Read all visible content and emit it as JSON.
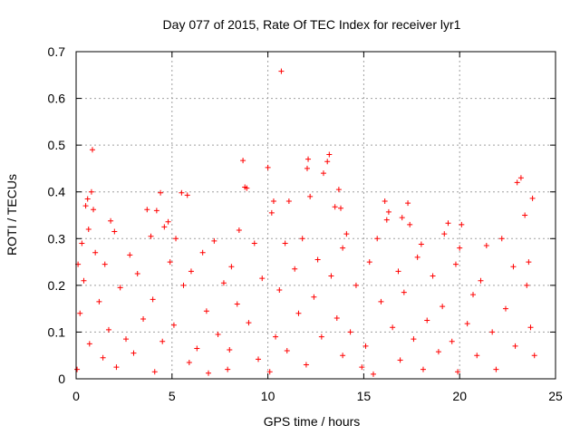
{
  "chart_data": {
    "type": "scatter",
    "title": "Day 077 of 2015, Rate Of TEC Index for receiver lyr1",
    "xlabel": "GPS time / hours",
    "ylabel": "ROTI / TECUs",
    "xlim": [
      0,
      25
    ],
    "ylim": [
      0,
      0.7
    ],
    "xticks": [
      "0",
      "5",
      "10",
      "15",
      "20",
      "25"
    ],
    "yticks": [
      "0",
      "0.1",
      "0.2",
      "0.3",
      "0.4",
      "0.5",
      "0.6",
      "0.7"
    ],
    "grid": true,
    "marker": "+",
    "series": [
      {
        "name": "ROTI",
        "color": "#ff0000",
        "points": [
          [
            10.7,
            0.658
          ],
          [
            0.85,
            0.49
          ],
          [
            8.7,
            0.467
          ],
          [
            12.1,
            0.47
          ],
          [
            13.2,
            0.48
          ],
          [
            13.1,
            0.465
          ],
          [
            10.0,
            0.452
          ],
          [
            12.05,
            0.45
          ],
          [
            12.9,
            0.44
          ],
          [
            23.2,
            0.43
          ],
          [
            23.0,
            0.42
          ],
          [
            8.8,
            0.41
          ],
          [
            8.9,
            0.408
          ],
          [
            13.7,
            0.405
          ],
          [
            0.8,
            0.4
          ],
          [
            4.4,
            0.398
          ],
          [
            5.5,
            0.398
          ],
          [
            5.8,
            0.393
          ],
          [
            12.2,
            0.39
          ],
          [
            23.8,
            0.386
          ],
          [
            0.6,
            0.385
          ],
          [
            10.3,
            0.38
          ],
          [
            11.1,
            0.38
          ],
          [
            16.1,
            0.38
          ],
          [
            17.3,
            0.376
          ],
          [
            0.5,
            0.37
          ],
          [
            13.5,
            0.368
          ],
          [
            13.8,
            0.365
          ],
          [
            3.7,
            0.362
          ],
          [
            0.9,
            0.362
          ],
          [
            4.2,
            0.36
          ],
          [
            16.3,
            0.357
          ],
          [
            10.2,
            0.355
          ],
          [
            23.4,
            0.35
          ],
          [
            17.0,
            0.345
          ],
          [
            16.2,
            0.34
          ],
          [
            1.8,
            0.338
          ],
          [
            4.8,
            0.336
          ],
          [
            19.4,
            0.333
          ],
          [
            20.1,
            0.33
          ],
          [
            17.4,
            0.33
          ],
          [
            0.65,
            0.32
          ],
          [
            4.6,
            0.325
          ],
          [
            8.5,
            0.318
          ],
          [
            2.0,
            0.315
          ],
          [
            14.1,
            0.31
          ],
          [
            19.2,
            0.31
          ],
          [
            22.2,
            0.3
          ],
          [
            3.9,
            0.305
          ],
          [
            11.8,
            0.3
          ],
          [
            5.2,
            0.3
          ],
          [
            15.7,
            0.3
          ],
          [
            7.2,
            0.295
          ],
          [
            0.3,
            0.29
          ],
          [
            9.3,
            0.29
          ],
          [
            10.9,
            0.29
          ],
          [
            18.0,
            0.288
          ],
          [
            21.4,
            0.285
          ],
          [
            13.9,
            0.28
          ],
          [
            20.0,
            0.28
          ],
          [
            0.1,
            0.245
          ],
          [
            6.6,
            0.27
          ],
          [
            1.0,
            0.27
          ],
          [
            2.8,
            0.265
          ],
          [
            17.8,
            0.26
          ],
          [
            12.6,
            0.255
          ],
          [
            23.6,
            0.25
          ],
          [
            4.9,
            0.25
          ],
          [
            15.3,
            0.25
          ],
          [
            8.1,
            0.24
          ],
          [
            1.5,
            0.245
          ],
          [
            19.8,
            0.245
          ],
          [
            22.8,
            0.24
          ],
          [
            11.4,
            0.235
          ],
          [
            6.0,
            0.23
          ],
          [
            16.8,
            0.23
          ],
          [
            3.2,
            0.225
          ],
          [
            13.3,
            0.22
          ],
          [
            18.6,
            0.22
          ],
          [
            9.7,
            0.215
          ],
          [
            21.1,
            0.21
          ],
          [
            0.4,
            0.21
          ],
          [
            5.6,
            0.2
          ],
          [
            7.7,
            0.205
          ],
          [
            14.6,
            0.2
          ],
          [
            23.5,
            0.2
          ],
          [
            2.3,
            0.195
          ],
          [
            10.6,
            0.19
          ],
          [
            17.1,
            0.185
          ],
          [
            20.7,
            0.18
          ],
          [
            12.4,
            0.175
          ],
          [
            4.0,
            0.17
          ],
          [
            1.2,
            0.165
          ],
          [
            15.9,
            0.165
          ],
          [
            8.4,
            0.16
          ],
          [
            19.1,
            0.155
          ],
          [
            22.4,
            0.15
          ],
          [
            6.8,
            0.145
          ],
          [
            0.2,
            0.14
          ],
          [
            11.6,
            0.14
          ],
          [
            13.6,
            0.13
          ],
          [
            3.5,
            0.128
          ],
          [
            18.3,
            0.125
          ],
          [
            9.0,
            0.12
          ],
          [
            20.4,
            0.118
          ],
          [
            5.1,
            0.115
          ],
          [
            16.5,
            0.11
          ],
          [
            23.7,
            0.11
          ],
          [
            1.7,
            0.105
          ],
          [
            14.3,
            0.1
          ],
          [
            21.7,
            0.1
          ],
          [
            7.4,
            0.095
          ],
          [
            10.4,
            0.09
          ],
          [
            12.8,
            0.09
          ],
          [
            2.6,
            0.085
          ],
          [
            17.6,
            0.085
          ],
          [
            4.5,
            0.08
          ],
          [
            19.6,
            0.08
          ],
          [
            0.7,
            0.075
          ],
          [
            15.1,
            0.07
          ],
          [
            22.9,
            0.07
          ],
          [
            6.3,
            0.065
          ],
          [
            8.0,
            0.062
          ],
          [
            11.0,
            0.06
          ],
          [
            18.9,
            0.058
          ],
          [
            3.0,
            0.055
          ],
          [
            13.9,
            0.05
          ],
          [
            20.9,
            0.05
          ],
          [
            1.4,
            0.045
          ],
          [
            9.5,
            0.042
          ],
          [
            16.9,
            0.04
          ],
          [
            5.9,
            0.035
          ],
          [
            23.9,
            0.05
          ],
          [
            12.0,
            0.03
          ],
          [
            14.9,
            0.025
          ],
          [
            2.1,
            0.025
          ],
          [
            7.9,
            0.02
          ],
          [
            18.1,
            0.02
          ],
          [
            21.9,
            0.02
          ],
          [
            0.05,
            0.02
          ],
          [
            10.1,
            0.015
          ],
          [
            15.5,
            0.01
          ],
          [
            4.1,
            0.015
          ],
          [
            19.9,
            0.015
          ],
          [
            6.9,
            0.012
          ]
        ]
      }
    ]
  }
}
